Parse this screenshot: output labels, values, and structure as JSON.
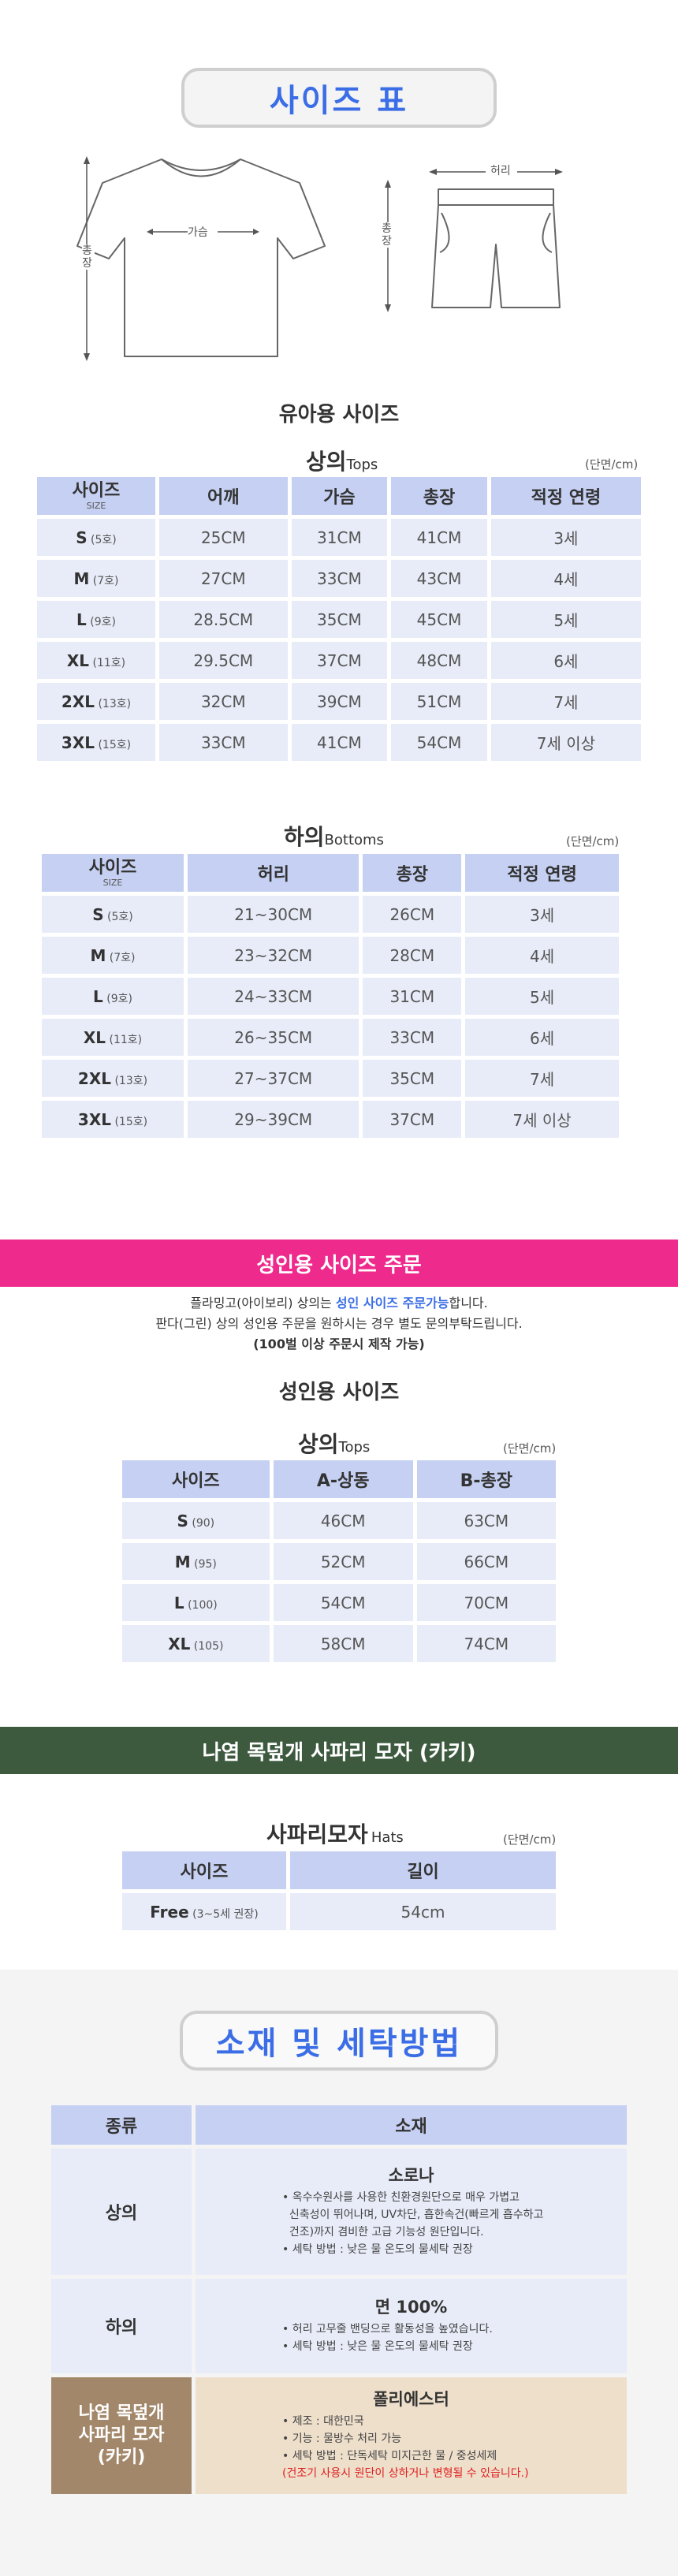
{
  "size_section": {
    "title": "사이즈 표",
    "diagram": {
      "top_chest_label": "가슴",
      "top_length_label": "총장",
      "bottom_waist_label": "허리",
      "bottom_length_label": "총장"
    }
  },
  "kids": {
    "heading": "유아용 사이즈",
    "tops": {
      "caption": "상의",
      "caption_en": "Tops",
      "unit": "(단면/cm)",
      "header_size": "사이즈",
      "header_size_en": "SIZE",
      "columns": [
        "어깨",
        "가슴",
        "총장",
        "적정 연령"
      ],
      "rows": [
        {
          "size": "S",
          "no": "(5호)",
          "cells": [
            "25CM",
            "31CM",
            "41CM",
            "3세"
          ]
        },
        {
          "size": "M",
          "no": "(7호)",
          "cells": [
            "27CM",
            "33CM",
            "43CM",
            "4세"
          ]
        },
        {
          "size": "L",
          "no": "(9호)",
          "cells": [
            "28.5CM",
            "35CM",
            "45CM",
            "5세"
          ]
        },
        {
          "size": "XL",
          "no": "(11호)",
          "cells": [
            "29.5CM",
            "37CM",
            "48CM",
            "6세"
          ]
        },
        {
          "size": "2XL",
          "no": "(13호)",
          "cells": [
            "32CM",
            "39CM",
            "51CM",
            "7세"
          ]
        },
        {
          "size": "3XL",
          "no": "(15호)",
          "cells": [
            "33CM",
            "41CM",
            "54CM",
            "7세 이상"
          ]
        }
      ]
    },
    "bottoms": {
      "caption": "하의",
      "caption_en": "Bottoms",
      "unit": "(단면/cm)",
      "header_size": "사이즈",
      "header_size_en": "SIZE",
      "columns": [
        "허리",
        "총장",
        "적정 연령"
      ],
      "rows": [
        {
          "size": "S",
          "no": "(5호)",
          "cells": [
            "21~30CM",
            "26CM",
            "3세"
          ]
        },
        {
          "size": "M",
          "no": "(7호)",
          "cells": [
            "23~32CM",
            "28CM",
            "4세"
          ]
        },
        {
          "size": "L",
          "no": "(9호)",
          "cells": [
            "24~33CM",
            "31CM",
            "5세"
          ]
        },
        {
          "size": "XL",
          "no": "(11호)",
          "cells": [
            "26~35CM",
            "33CM",
            "6세"
          ]
        },
        {
          "size": "2XL",
          "no": "(13호)",
          "cells": [
            "27~37CM",
            "35CM",
            "7세"
          ]
        },
        {
          "size": "3XL",
          "no": "(15호)",
          "cells": [
            "29~39CM",
            "37CM",
            "7세 이상"
          ]
        }
      ]
    }
  },
  "adult_order": {
    "banner": "성인용 사이즈 주문",
    "banner_color": "#ee2a8d",
    "line1_before": "플라밍고(아이보리) 상의는 ",
    "line1_highlight": "성인 사이즈 주문가능",
    "line1_after": "합니다.",
    "line2": "판다(그린) 상의 성인용 주문을 원하시는 경우 별도 문의부탁드립니다.",
    "line3": "(100벌 이상 주문시 제작 가능)"
  },
  "adult": {
    "heading": "성인용 사이즈",
    "tops": {
      "caption": "상의",
      "caption_en": "Tops",
      "unit": "(단면/cm)",
      "columns": [
        "사이즈",
        "A-상동",
        "B-총장"
      ],
      "rows": [
        {
          "size": "S",
          "no": "(90)",
          "cells": [
            "46CM",
            "63CM"
          ]
        },
        {
          "size": "M",
          "no": "(95)",
          "cells": [
            "52CM",
            "66CM"
          ]
        },
        {
          "size": "L",
          "no": "(100)",
          "cells": [
            "54CM",
            "70CM"
          ]
        },
        {
          "size": "XL",
          "no": "(105)",
          "cells": [
            "58CM",
            "74CM"
          ]
        }
      ]
    }
  },
  "hat": {
    "banner": "나염 목덮개 사파리 모자 (카키)",
    "banner_color": "#3d5a3f",
    "caption": "사파리모자",
    "caption_en": "Hats",
    "unit": "(단면/cm)",
    "columns": [
      "사이즈",
      "길이"
    ],
    "rows": [
      {
        "size": "Free",
        "no": "(3~5세 권장)",
        "cells": [
          "54cm"
        ]
      }
    ]
  },
  "material": {
    "title": "소재 및 세탁방법",
    "header_kind": "종류",
    "header_material": "소재",
    "rows": [
      {
        "kind": "상의",
        "name": "소로나",
        "lines": [
          "• 옥수수원사를 사용한 친환경원단으로 매우 가볍고",
          "  신축성이 뛰어나며, UV차단, 흡한속건(빠르게 흡수하고",
          "  건조)까지 겸비한 고급 기능성 원단입니다.",
          "• 세탁 방법 : 낮은 물 온도의 물세탁 권장"
        ]
      },
      {
        "kind": "하의",
        "name": "면 100%",
        "lines": [
          "• 허리 고무줄 밴딩으로 활동성을 높였습니다.",
          "• 세탁 방법 : 낮은 물 온도의 물세탁 권장"
        ]
      },
      {
        "kind": "나염 목덮개 사파리 모자 (카키)",
        "kind_lines": [
          "나염 목덮개",
          "사파리 모자",
          "(카키)"
        ],
        "name": "폴리에스터",
        "lines": [
          "• 제조 : 대한민국",
          "• 기능 : 물방수 처리 가능",
          "• 세탁 방법 : 단독세탁 미지근한 물 / 중성세제"
        ],
        "warning": "(건조기 사용시 원단이 상하거나 변형될 수 있습니다.)"
      }
    ]
  }
}
